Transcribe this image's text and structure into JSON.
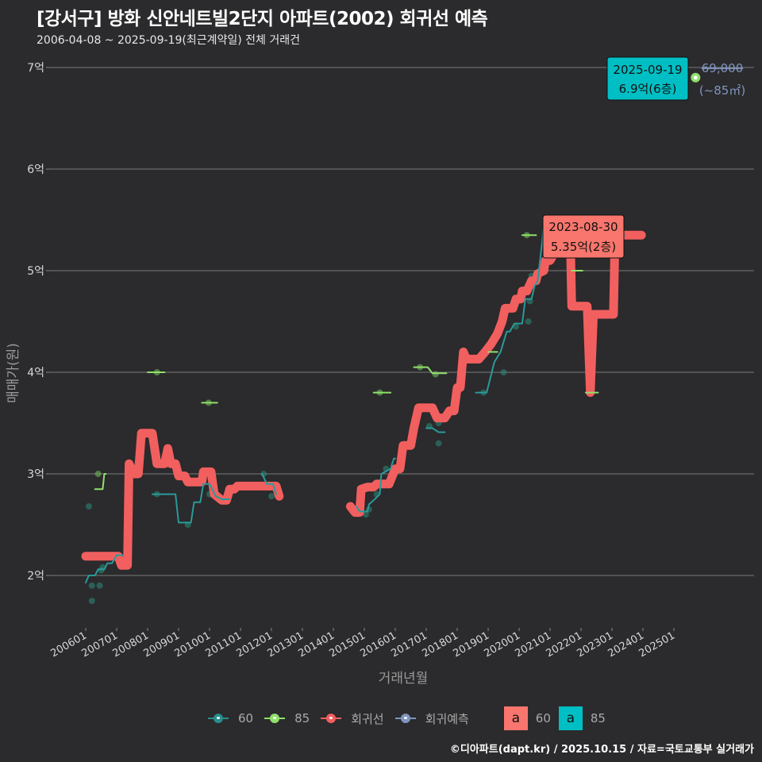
{
  "header": {
    "title": "[강서구] 방화 신안네트빌2단지 아파트(2002) 회귀선 예측",
    "subtitle": "2006-04-08 ~ 2025-09-19(최근계약일) 전체 거래건"
  },
  "footer": {
    "credit": "©디아파트(dapt.kr) / 2025.10.15 / 자료=국토교통부 실거래가"
  },
  "legend": {
    "items": [
      {
        "label": "60",
        "color": "#2a8c8c"
      },
      {
        "label": "85",
        "color": "#8ee06a"
      },
      {
        "label": "회귀선",
        "color": "#f25f5f"
      },
      {
        "label": "회귀예측",
        "color": "#7f95c0"
      }
    ],
    "label_keys": [
      {
        "glyph": "a",
        "label": "60",
        "color": "#f8766d"
      },
      {
        "glyph": "a",
        "label": "85",
        "color": "#00bfc4"
      }
    ]
  },
  "annotations": {
    "recent": {
      "date": "2025-09-19",
      "value": "6.9억(6층)",
      "price_text": "69,000",
      "area_text": "(~85㎡)"
    },
    "max": {
      "date": "2023-08-30",
      "value": "5.35억(2층)"
    }
  },
  "chart_data": {
    "type": "line",
    "title": "[강서구] 방화 신안네트빌2단지 아파트(2002) 회귀선 예측",
    "subtitle": "2006-04-08 ~ 2025-09-19(최근계약일) 전체 거래건",
    "xlabel": "거래년월",
    "ylabel": "매매가(원)",
    "ylim": [
      1.5,
      7.2
    ],
    "yticks": [
      {
        "value": 2,
        "label": "2억"
      },
      {
        "value": 3,
        "label": "3억"
      },
      {
        "value": 4,
        "label": "4억"
      },
      {
        "value": 5,
        "label": "5억"
      },
      {
        "value": 6,
        "label": "6억"
      },
      {
        "value": 7,
        "label": "7억"
      }
    ],
    "xticks": [
      "200601",
      "200701",
      "200801",
      "200901",
      "201001",
      "201101",
      "201201",
      "201301",
      "201401",
      "201501",
      "201601",
      "201701",
      "201801",
      "201901",
      "202001",
      "202101",
      "202201",
      "202301",
      "202401",
      "202501"
    ],
    "grid": true,
    "legend_position": "bottom",
    "series": [
      {
        "name": "회귀선",
        "unit": "억",
        "points": [
          [
            2006.0,
            2.19
          ],
          [
            2006.9,
            2.19
          ],
          [
            2007.05,
            2.19
          ],
          [
            2007.15,
            2.1
          ],
          [
            2007.35,
            2.1
          ],
          [
            2007.4,
            3.1
          ],
          [
            2007.55,
            3.0
          ],
          [
            2007.7,
            3.0
          ],
          [
            2007.8,
            3.4
          ],
          [
            2008.15,
            3.4
          ],
          [
            2008.3,
            3.1
          ],
          [
            2008.55,
            3.1
          ],
          [
            2008.65,
            3.25
          ],
          [
            2008.75,
            3.1
          ],
          [
            2008.9,
            3.1
          ],
          [
            2009.0,
            2.98
          ],
          [
            2009.2,
            2.98
          ],
          [
            2009.3,
            2.92
          ],
          [
            2009.75,
            2.92
          ],
          [
            2009.8,
            3.02
          ],
          [
            2010.05,
            3.02
          ],
          [
            2010.15,
            2.8
          ],
          [
            2010.4,
            2.74
          ],
          [
            2010.55,
            2.74
          ],
          [
            2010.65,
            2.85
          ],
          [
            2010.8,
            2.85
          ],
          [
            2010.9,
            2.88
          ],
          [
            2012.15,
            2.88
          ],
          [
            2012.25,
            2.78
          ]
        ],
        "points_2": [
          [
            2014.55,
            2.68
          ],
          [
            2014.7,
            2.62
          ],
          [
            2014.85,
            2.62
          ],
          [
            2014.9,
            2.85
          ],
          [
            2015.1,
            2.87
          ],
          [
            2015.3,
            2.87
          ],
          [
            2015.4,
            2.9
          ],
          [
            2015.8,
            2.9
          ],
          [
            2016.0,
            3.05
          ],
          [
            2016.15,
            3.05
          ],
          [
            2016.25,
            3.28
          ],
          [
            2016.5,
            3.28
          ],
          [
            2016.6,
            3.45
          ],
          [
            2016.75,
            3.65
          ],
          [
            2017.2,
            3.65
          ],
          [
            2017.35,
            3.55
          ],
          [
            2017.6,
            3.55
          ],
          [
            2017.75,
            3.62
          ],
          [
            2017.9,
            3.62
          ],
          [
            2018.0,
            3.85
          ],
          [
            2018.1,
            3.85
          ],
          [
            2018.2,
            4.2
          ],
          [
            2018.3,
            4.13
          ],
          [
            2018.7,
            4.13
          ],
          [
            2018.9,
            4.2
          ],
          [
            2019.1,
            4.28
          ],
          [
            2019.3,
            4.38
          ],
          [
            2019.45,
            4.5
          ],
          [
            2019.55,
            4.63
          ],
          [
            2019.8,
            4.63
          ],
          [
            2019.9,
            4.72
          ],
          [
            2020.05,
            4.72
          ],
          [
            2020.1,
            4.8
          ],
          [
            2020.25,
            4.8
          ],
          [
            2020.4,
            4.9
          ],
          [
            2020.55,
            4.9
          ],
          [
            2020.6,
            4.97
          ],
          [
            2020.8,
            5.0
          ],
          [
            2020.85,
            5.1
          ],
          [
            2021.0,
            5.1
          ],
          [
            2021.2,
            5.2
          ],
          [
            2021.4,
            5.2
          ],
          [
            2021.5,
            5.35
          ],
          [
            2021.65,
            5.35
          ],
          [
            2021.7,
            4.65
          ],
          [
            2022.2,
            4.65
          ],
          [
            2022.3,
            3.8
          ],
          [
            2022.4,
            4.57
          ],
          [
            2023.05,
            4.57
          ],
          [
            2023.1,
            5.35
          ],
          [
            2023.95,
            5.35
          ]
        ]
      },
      {
        "name": "60",
        "unit": "억",
        "line": [
          [
            2006.0,
            1.93
          ],
          [
            2006.1,
            2.0
          ],
          [
            2006.3,
            2.0
          ],
          [
            2006.4,
            2.06
          ],
          [
            2006.6,
            2.06
          ],
          [
            2006.7,
            2.12
          ],
          [
            2006.85,
            2.12
          ],
          [
            2007.0,
            2.2
          ],
          [
            2007.2,
            2.2
          ]
        ],
        "line_2": [
          [
            2008.15,
            2.8
          ],
          [
            2008.9,
            2.8
          ],
          [
            2009.0,
            2.52
          ],
          [
            2009.4,
            2.52
          ],
          [
            2009.5,
            2.72
          ],
          [
            2009.7,
            2.72
          ],
          [
            2009.8,
            2.9
          ],
          [
            2010.0,
            2.9
          ],
          [
            2010.2,
            2.78
          ],
          [
            2010.4,
            2.75
          ],
          [
            2010.65,
            2.75
          ]
        ],
        "line_3": [
          [
            2011.7,
            3.0
          ],
          [
            2011.85,
            2.9
          ],
          [
            2012.05,
            2.9
          ],
          [
            2012.15,
            2.8
          ]
        ],
        "line_4": [
          [
            2014.75,
            2.68
          ],
          [
            2014.85,
            2.63
          ],
          [
            2015.1,
            2.63
          ],
          [
            2015.15,
            2.7
          ],
          [
            2015.3,
            2.74
          ],
          [
            2015.5,
            2.8
          ],
          [
            2015.55,
            3.0
          ],
          [
            2015.85,
            3.05
          ],
          [
            2015.95,
            3.15
          ],
          [
            2016.0,
            3.15
          ]
        ],
        "line_5": [
          [
            2017.0,
            3.45
          ],
          [
            2017.2,
            3.45
          ],
          [
            2017.4,
            3.41
          ],
          [
            2017.6,
            3.41
          ]
        ],
        "line_6": [
          [
            2018.6,
            3.8
          ],
          [
            2018.95,
            3.8
          ],
          [
            2019.2,
            4.1
          ],
          [
            2019.4,
            4.2
          ],
          [
            2019.6,
            4.4
          ],
          [
            2019.7,
            4.4
          ],
          [
            2019.85,
            4.48
          ],
          [
            2020.1,
            4.48
          ],
          [
            2020.2,
            4.72
          ],
          [
            2020.4,
            4.72
          ],
          [
            2020.5,
            4.85
          ],
          [
            2020.6,
            4.9
          ],
          [
            2020.75,
            5.3
          ],
          [
            2020.8,
            5.5
          ]
        ],
        "line_7": [
          [
            2023.15,
            5.35
          ],
          [
            2023.4,
            5.35
          ]
        ],
        "scatter": [
          [
            2006.1,
            2.68
          ],
          [
            2006.2,
            1.9
          ],
          [
            2006.2,
            1.75
          ],
          [
            2006.45,
            1.9
          ],
          [
            2006.5,
            2.05
          ],
          [
            2006.55,
            2.08
          ],
          [
            2008.3,
            2.8
          ],
          [
            2009.3,
            2.5
          ],
          [
            2010.0,
            2.8
          ],
          [
            2010.3,
            2.75
          ],
          [
            2011.75,
            3.0
          ],
          [
            2012.0,
            2.78
          ],
          [
            2015.05,
            2.6
          ],
          [
            2015.15,
            2.65
          ],
          [
            2015.4,
            2.8
          ],
          [
            2015.7,
            3.05
          ],
          [
            2017.1,
            3.47
          ],
          [
            2017.4,
            3.3
          ],
          [
            2017.4,
            3.5
          ],
          [
            2018.85,
            3.8
          ],
          [
            2019.5,
            4.0
          ],
          [
            2019.9,
            4.45
          ],
          [
            2020.3,
            4.5
          ],
          [
            2020.35,
            4.7
          ],
          [
            2020.4,
            4.95
          ]
        ]
      },
      {
        "name": "85",
        "unit": "억",
        "segments": [
          [
            [
              2006.3,
              2.85
            ],
            [
              2006.55,
              2.85
            ],
            [
              2006.6,
              3.0
            ],
            [
              2006.65,
              3.0
            ]
          ],
          [
            [
              2008.0,
              4.0
            ],
            [
              2008.55,
              4.0
            ]
          ],
          [
            [
              2009.75,
              3.7
            ],
            [
              2010.25,
              3.7
            ]
          ],
          [
            [
              2015.3,
              3.8
            ],
            [
              2015.85,
              3.8
            ]
          ],
          [
            [
              2016.6,
              4.05
            ],
            [
              2017.05,
              4.05
            ],
            [
              2017.2,
              3.99
            ],
            [
              2017.65,
              3.99
            ]
          ],
          [
            [
              2019.0,
              4.2
            ],
            [
              2019.3,
              4.2
            ]
          ],
          [
            [
              2020.1,
              5.35
            ],
            [
              2020.55,
              5.35
            ]
          ],
          [
            [
              2021.7,
              5.0
            ],
            [
              2022.05,
              5.0
            ]
          ],
          [
            [
              2022.15,
              3.8
            ],
            [
              2022.55,
              3.8
            ]
          ]
        ],
        "scatter": [
          [
            2006.4,
            3.0
          ],
          [
            2008.3,
            4.0
          ],
          [
            2009.97,
            3.7
          ],
          [
            2015.5,
            3.8
          ],
          [
            2016.8,
            4.05
          ],
          [
            2017.3,
            3.98
          ],
          [
            2020.25,
            5.35
          ],
          [
            2025.7,
            6.9
          ]
        ]
      },
      {
        "name": "회귀예측",
        "unit": "억",
        "points": [
          [
            2025.7,
            6.9
          ],
          [
            2026.5,
            6.9
          ]
        ]
      }
    ]
  }
}
